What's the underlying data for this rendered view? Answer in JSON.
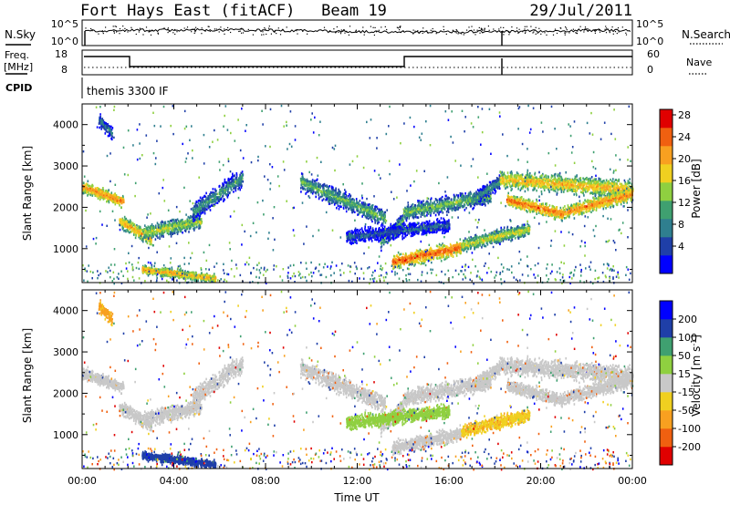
{
  "header": {
    "station": "Fort Hays East (fitACF)",
    "beam": "Beam 19",
    "date": "29/Jul/2011"
  },
  "panel_nsky": {
    "left_label": "N.Sky",
    "right_label": "N.Search",
    "left_ticks": [
      "10^5",
      "10^0"
    ],
    "right_ticks": [
      "10^5",
      "10^0"
    ]
  },
  "panel_freq": {
    "left_label_line1": "Freq.",
    "left_label_line2": "[MHz]",
    "left_ticks": [
      "18",
      "8"
    ],
    "right_label": "Nave",
    "right_ticks": [
      "60",
      "0"
    ]
  },
  "panel_cpid": {
    "label": "CPID",
    "program": "themis 3300 IF"
  },
  "colors": {
    "power": [
      "#0000ff",
      "#1f3fa8",
      "#2f7f8f",
      "#3fa070",
      "#8fd040",
      "#f0d020",
      "#f8a020",
      "#f06010",
      "#e00000"
    ],
    "velocity": [
      "#e00000",
      "#f06010",
      "#f8a020",
      "#f0d020",
      "#c8c8c8",
      "#8fd040",
      "#3fa070",
      "#1f3fa8",
      "#0000ff"
    ]
  },
  "chart_data": [
    {
      "type": "heatmap",
      "title": "",
      "xlabel": "",
      "ylabel": "Slant Range [km]",
      "xlim": [
        0,
        24
      ],
      "ylim": [
        180,
        4500
      ],
      "yticks": [
        1000,
        2000,
        3000,
        4000
      ],
      "colorbar": {
        "label": "Power [dB]",
        "ticks": [
          "4",
          "8",
          "12",
          "16",
          "20",
          "24",
          "28"
        ],
        "range": [
          0,
          30
        ]
      }
    },
    {
      "type": "heatmap",
      "title": "",
      "xlabel": "Time UT",
      "ylabel": "Slant Range [km]",
      "xlim": [
        0,
        24
      ],
      "ylim": [
        180,
        4500
      ],
      "yticks": [
        1000,
        2000,
        3000,
        4000
      ],
      "xticks": [
        "00:00",
        "04:00",
        "08:00",
        "12:00",
        "16:00",
        "20:00",
        "00:00"
      ],
      "colorbar": {
        "label_text": "Velocity [m s",
        "label_exp": "-1",
        "label_close": "]",
        "ticks": [
          "200",
          "100",
          "50",
          "15",
          "-15",
          "-50",
          "-100",
          "-200"
        ],
        "range": [
          -250,
          250
        ]
      }
    }
  ],
  "echo_bands": [
    {
      "t0": 0.0,
      "t1": 1.8,
      "r0": 2520,
      "r1": 2150,
      "w": 190,
      "pwr": 24,
      "vel": 0
    },
    {
      "t0": 1.6,
      "t1": 3.0,
      "r0": 1700,
      "r1": 1250,
      "w": 220,
      "pwr": 22,
      "vel": 0
    },
    {
      "t0": 2.6,
      "t1": 5.2,
      "r0": 1400,
      "r1": 1700,
      "w": 260,
      "pwr": 17,
      "vel": 0
    },
    {
      "t0": 4.8,
      "t1": 7.0,
      "r0": 1900,
      "r1": 2750,
      "w": 300,
      "pwr": 12,
      "vel": 0
    },
    {
      "t0": 2.6,
      "t1": 5.8,
      "r0": 520,
      "r1": 300,
      "w": 140,
      "pwr": 22,
      "vel": 140
    },
    {
      "t0": 0.7,
      "t1": 1.3,
      "r0": 4150,
      "r1": 3800,
      "w": 220,
      "pwr": 10,
      "vel": -60
    },
    {
      "t0": 9.5,
      "t1": 13.2,
      "r0": 2650,
      "r1": 1750,
      "w": 280,
      "pwr": 14,
      "vel": 0
    },
    {
      "t0": 13.0,
      "t1": 14.0,
      "r0": 1200,
      "r1": 1700,
      "w": 260,
      "pwr": 14,
      "vel": 0
    },
    {
      "t0": 14.0,
      "t1": 17.8,
      "r0": 1900,
      "r1": 2300,
      "w": 260,
      "pwr": 15,
      "vel": 0
    },
    {
      "t0": 17.0,
      "t1": 18.2,
      "r0": 2200,
      "r1": 2650,
      "w": 220,
      "pwr": 12,
      "vel": 0
    },
    {
      "t0": 18.2,
      "t1": 24.0,
      "r0": 2700,
      "r1": 2450,
      "w": 300,
      "pwr": 21,
      "vel": 0
    },
    {
      "t0": 18.5,
      "t1": 21.0,
      "r0": 2200,
      "r1": 1850,
      "w": 200,
      "pwr": 25,
      "vel": 0
    },
    {
      "t0": 21.0,
      "t1": 24.0,
      "r0": 1900,
      "r1": 2350,
      "w": 220,
      "pwr": 24,
      "vel": 0
    },
    {
      "t0": 13.5,
      "t1": 16.5,
      "r0": 700,
      "r1": 1050,
      "w": 220,
      "pwr": 26,
      "vel": 0
    },
    {
      "t0": 16.5,
      "t1": 19.5,
      "r0": 1100,
      "r1": 1500,
      "w": 220,
      "pwr": 18,
      "vel": -40
    },
    {
      "t0": 11.5,
      "t1": 16.0,
      "r0": 1300,
      "r1": 1600,
      "w": 220,
      "pwr": 8,
      "vel": 30
    }
  ]
}
